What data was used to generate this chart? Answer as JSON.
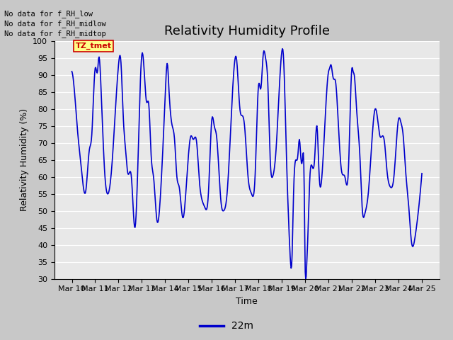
{
  "title": "Relativity Humidity Profile",
  "xlabel": "Time",
  "ylabel": "Relativity Humidity (%)",
  "ylim": [
    30,
    100
  ],
  "yticks": [
    30,
    35,
    40,
    45,
    50,
    55,
    60,
    65,
    70,
    75,
    80,
    85,
    90,
    95,
    100
  ],
  "line_color": "#0000CC",
  "line_width": 1.2,
  "legend_label": "22m",
  "legend_line_color": "#0000CC",
  "annotations": [
    "No data for f_RH_low",
    "No data for f_RH_midlow",
    "No data for f_RH_midtop"
  ],
  "tz_label": "TZ_tmet",
  "fig_bg_color": "#C8C8C8",
  "plot_bg_color": "#E8E8E8",
  "title_fontsize": 13,
  "axis_fontsize": 9,
  "tick_fontsize": 8,
  "annotation_fontsize": 7.5
}
